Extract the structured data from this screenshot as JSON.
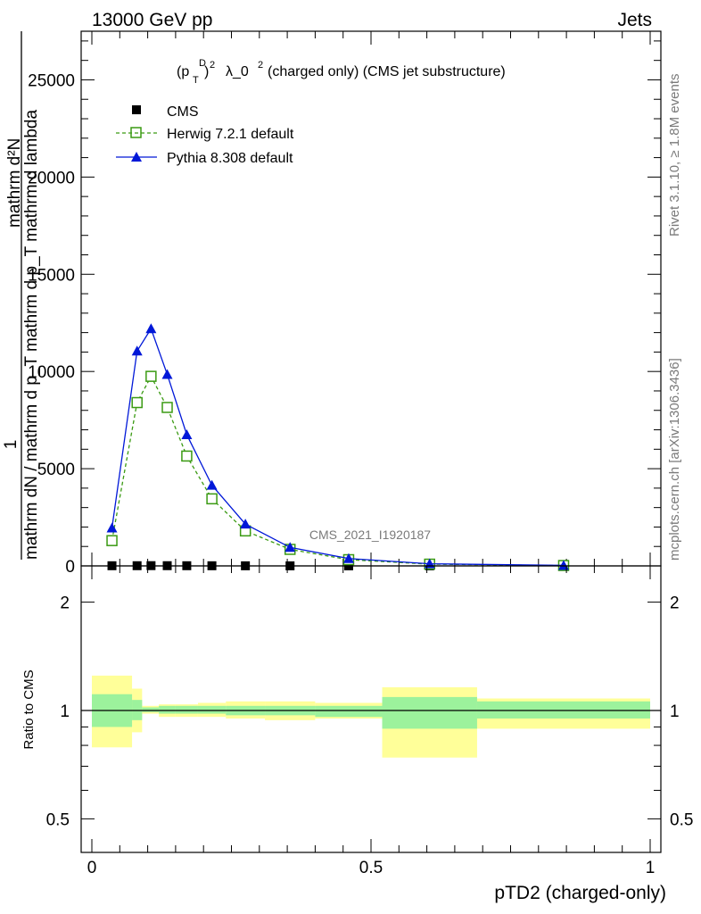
{
  "header": {
    "left": "13000 GeV pp",
    "right": "Jets"
  },
  "side_labels": {
    "rivet": "Rivet 3.1.10, ≥ 1.8M events",
    "mcplots": "mcplots.cern.ch [arXiv:1306.3436]"
  },
  "chart_data": {
    "type": "line",
    "title_main": "(charged only) (CMS jet substructure)",
    "title_lambda": "λ_0",
    "watermark": "CMS_2021_I1920187",
    "xlabel": "pTD2 (charged-only)",
    "ylabel_parts": {
      "numerator": "1",
      "denominator": "mathrm dN / mathrm d p_T mathrm d p_T mathrm d lambda",
      "frac_top": "mathrm d²N"
    },
    "xlim": [
      0,
      1
    ],
    "ylim": [
      0,
      27500
    ],
    "x_ticks": [
      "0",
      "0.5",
      "1"
    ],
    "y_ticks": [
      "0",
      "5000",
      "10000",
      "15000",
      "20000",
      "25000"
    ],
    "legend": {
      "placement": "top-left",
      "entries": [
        "CMS",
        "Herwig 7.2.1 default",
        "Pythia 8.308 default"
      ]
    },
    "colors": {
      "herwig": "#3a9a12",
      "pythia": "#0018d8",
      "band_inner": "#9cf29c",
      "band_outer": "#ffff99"
    },
    "series": [
      {
        "name": "CMS",
        "x": [
          0.036,
          0.081,
          0.106,
          0.135,
          0.17,
          0.215,
          0.275,
          0.355,
          0.46,
          0.605,
          0.845
        ],
        "y": [
          8,
          10,
          13,
          11,
          9,
          7,
          5,
          3,
          2,
          1,
          0.5
        ]
      },
      {
        "name": "Herwig 7.2.1 default",
        "x": [
          0.036,
          0.081,
          0.106,
          0.135,
          0.17,
          0.215,
          0.275,
          0.355,
          0.46,
          0.605,
          0.845
        ],
        "y": [
          1300,
          8400,
          9750,
          8150,
          5650,
          3450,
          1800,
          850,
          320,
          90,
          20
        ]
      },
      {
        "name": "Pythia 8.308 default",
        "x": [
          0.036,
          0.081,
          0.106,
          0.135,
          0.17,
          0.215,
          0.275,
          0.355,
          0.46,
          0.605,
          0.845
        ],
        "y": [
          1950,
          11050,
          12200,
          9850,
          6750,
          4150,
          2150,
          950,
          380,
          110,
          25
        ]
      }
    ],
    "ratio": {
      "ylabel": "Ratio to CMS",
      "y_ticks": [
        "0.5",
        "1",
        "2"
      ],
      "bins": [
        {
          "x0": 0.0,
          "x1": 0.072,
          "in_lo": 0.9,
          "in_hi": 1.11,
          "out_lo": 0.79,
          "out_hi": 1.25
        },
        {
          "x0": 0.072,
          "x1": 0.09,
          "in_lo": 0.94,
          "in_hi": 1.07,
          "out_lo": 0.87,
          "out_hi": 1.15
        },
        {
          "x0": 0.09,
          "x1": 0.12,
          "in_lo": 0.99,
          "in_hi": 1.02,
          "out_lo": 0.98,
          "out_hi": 1.03
        },
        {
          "x0": 0.12,
          "x1": 0.15,
          "in_lo": 0.98,
          "in_hi": 1.03,
          "out_lo": 0.96,
          "out_hi": 1.04
        },
        {
          "x0": 0.15,
          "x1": 0.19,
          "in_lo": 0.98,
          "in_hi": 1.03,
          "out_lo": 0.96,
          "out_hi": 1.04
        },
        {
          "x0": 0.19,
          "x1": 0.24,
          "in_lo": 0.98,
          "in_hi": 1.03,
          "out_lo": 0.96,
          "out_hi": 1.05
        },
        {
          "x0": 0.24,
          "x1": 0.31,
          "in_lo": 0.97,
          "in_hi": 1.03,
          "out_lo": 0.95,
          "out_hi": 1.06
        },
        {
          "x0": 0.31,
          "x1": 0.4,
          "in_lo": 0.97,
          "in_hi": 1.03,
          "out_lo": 0.94,
          "out_hi": 1.06
        },
        {
          "x0": 0.4,
          "x1": 0.52,
          "in_lo": 0.96,
          "in_hi": 1.03,
          "out_lo": 0.95,
          "out_hi": 1.05
        },
        {
          "x0": 0.52,
          "x1": 0.69,
          "in_lo": 0.89,
          "in_hi": 1.09,
          "out_lo": 0.74,
          "out_hi": 1.16
        },
        {
          "x0": 0.69,
          "x1": 1.0,
          "in_lo": 0.95,
          "in_hi": 1.06,
          "out_lo": 0.89,
          "out_hi": 1.08
        }
      ]
    }
  }
}
